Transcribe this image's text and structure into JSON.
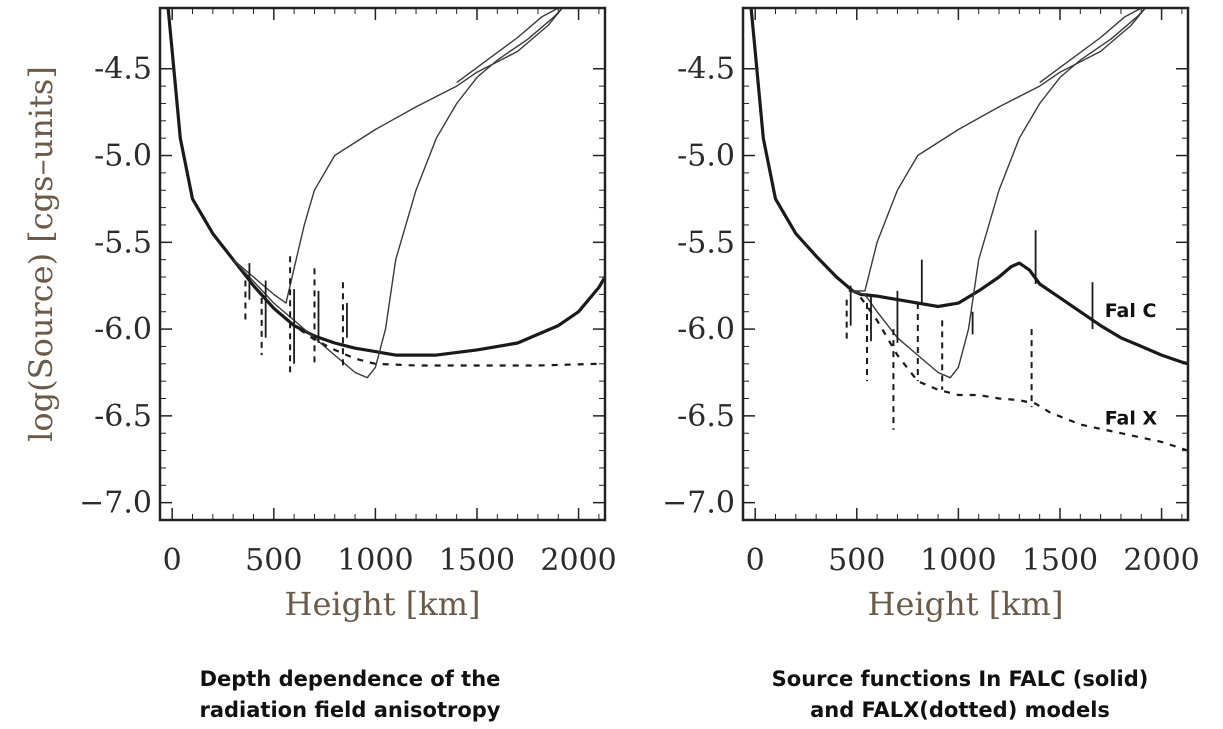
{
  "captions": {
    "left": [
      "Depth dependence of the",
      "radiation field anisotropy"
    ],
    "right": [
      "Source functions In FALC (solid)",
      "and FALX(dotted)  models"
    ]
  },
  "chart_data": [
    {
      "type": "line",
      "xlabel": "Height [km]",
      "ylabel": "log(Source) [cgs–units]",
      "xlim": [
        -60,
        2130
      ],
      "ylim": [
        -7.1,
        -4.15
      ],
      "xticks": [
        0,
        500,
        1000,
        1500,
        2000
      ],
      "yticks": [
        -4.5,
        -5.0,
        -5.5,
        -6.0,
        -6.5,
        -7.0
      ],
      "ytick_labels": [
        "-4.5",
        "-5.0",
        "-5.5",
        "-6.0",
        "-6.5",
        "−7.0"
      ],
      "series": [
        {
          "style": "solid-thick",
          "x": [
            -20,
            0,
            40,
            100,
            200,
            300,
            400,
            500,
            600,
            700,
            800,
            900,
            1000,
            1100,
            1300,
            1500,
            1700,
            1900,
            2000,
            2100,
            2130
          ],
          "y": [
            -4.15,
            -4.4,
            -4.9,
            -5.25,
            -5.45,
            -5.6,
            -5.75,
            -5.88,
            -5.98,
            -6.04,
            -6.08,
            -6.11,
            -6.13,
            -6.15,
            -6.15,
            -6.12,
            -6.08,
            -5.98,
            -5.9,
            -5.76,
            -5.7
          ]
        },
        {
          "style": "dashed",
          "x": [
            200,
            300,
            400,
            500,
            600,
            700,
            800,
            900,
            1000,
            1200,
            1500,
            1800,
            2100
          ],
          "y": [
            -5.45,
            -5.6,
            -5.75,
            -5.88,
            -5.98,
            -6.06,
            -6.12,
            -6.17,
            -6.2,
            -6.21,
            -6.21,
            -6.21,
            -6.2
          ]
        },
        {
          "style": "thin",
          "x": [
            300,
            400,
            500,
            560,
            600,
            650,
            700,
            800,
            1000,
            1200,
            1400,
            1500,
            1700,
            1850,
            1920
          ],
          "y": [
            -5.6,
            -5.7,
            -5.8,
            -5.85,
            -5.65,
            -5.4,
            -5.2,
            -5.0,
            -4.85,
            -4.72,
            -4.6,
            -4.52,
            -4.4,
            -4.25,
            -4.15
          ]
        },
        {
          "style": "thin",
          "x": [
            300,
            500,
            600,
            700,
            800,
            900,
            960,
            1000,
            1050,
            1100,
            1200,
            1300,
            1400,
            1500,
            1600,
            1750,
            1880,
            1920
          ],
          "y": [
            -5.6,
            -5.85,
            -5.95,
            -6.05,
            -6.15,
            -6.25,
            -6.28,
            -6.22,
            -6.0,
            -5.6,
            -5.2,
            -4.9,
            -4.7,
            -4.55,
            -4.45,
            -4.33,
            -4.2,
            -4.15
          ]
        },
        {
          "style": "thin",
          "x": [
            1400,
            1550,
            1700,
            1820,
            1900
          ],
          "y": [
            -4.58,
            -4.45,
            -4.32,
            -4.2,
            -4.15
          ]
        }
      ],
      "error_bars": {
        "solid": [
          [
            380,
            -5.62,
            -5.83
          ],
          [
            460,
            -5.72,
            -6.05
          ],
          [
            600,
            -5.77,
            -6.2
          ],
          [
            720,
            -5.78,
            -6.08
          ],
          [
            860,
            -5.85,
            -6.05
          ]
        ],
        "dashed": [
          [
            380,
            -5.72,
            -5.95
          ],
          [
            460,
            -5.82,
            -6.15
          ],
          [
            600,
            -5.58,
            -6.25
          ],
          [
            720,
            -5.65,
            -6.2
          ],
          [
            860,
            -5.73,
            -6.22
          ]
        ]
      }
    },
    {
      "type": "line",
      "xlabel": "Height [km]",
      "ylabel": "",
      "xlim": [
        -60,
        2130
      ],
      "ylim": [
        -7.1,
        -4.15
      ],
      "xticks": [
        0,
        500,
        1000,
        1500,
        2000
      ],
      "yticks": [
        -4.5,
        -5.0,
        -5.5,
        -6.0,
        -6.5,
        -7.0
      ],
      "ytick_labels": [
        "-4.5",
        "-5.0",
        "-5.5",
        "-6.0",
        "-6.5",
        "−7.0"
      ],
      "annotations": [
        {
          "text": "Fal C",
          "x": 1720,
          "y": -5.93
        },
        {
          "text": "Fal X",
          "x": 1720,
          "y": -6.55
        }
      ],
      "series": [
        {
          "style": "solid-thick",
          "name": "Fal C",
          "x": [
            -20,
            0,
            40,
            100,
            200,
            300,
            400,
            480,
            520,
            600,
            700,
            800,
            900,
            1000,
            1100,
            1200,
            1260,
            1300,
            1350,
            1400,
            1500,
            1600,
            1700,
            1800,
            1900,
            2000,
            2100,
            2130
          ],
          "y": [
            -4.15,
            -4.4,
            -4.9,
            -5.25,
            -5.45,
            -5.58,
            -5.7,
            -5.78,
            -5.8,
            -5.81,
            -5.83,
            -5.85,
            -5.87,
            -5.85,
            -5.78,
            -5.7,
            -5.64,
            -5.62,
            -5.66,
            -5.74,
            -5.82,
            -5.9,
            -5.98,
            -6.05,
            -6.1,
            -6.15,
            -6.19,
            -6.2
          ]
        },
        {
          "style": "dashed",
          "name": "Fal X",
          "x": [
            200,
            300,
            400,
            480,
            520,
            600,
            700,
            800,
            900,
            1000,
            1100,
            1200,
            1300,
            1380,
            1450,
            1600,
            1800,
            2000,
            2130
          ],
          "y": [
            -5.45,
            -5.58,
            -5.7,
            -5.78,
            -5.82,
            -5.95,
            -6.15,
            -6.3,
            -6.35,
            -6.38,
            -6.38,
            -6.4,
            -6.41,
            -6.43,
            -6.48,
            -6.55,
            -6.6,
            -6.65,
            -6.7
          ]
        },
        {
          "style": "thin",
          "x": [
            460,
            540,
            600,
            700,
            800,
            1000,
            1200,
            1400,
            1500,
            1700,
            1850,
            1920
          ],
          "y": [
            -5.78,
            -5.78,
            -5.5,
            -5.2,
            -5.0,
            -4.85,
            -4.72,
            -4.6,
            -4.52,
            -4.4,
            -4.25,
            -4.15
          ]
        },
        {
          "style": "thin",
          "x": [
            460,
            540,
            600,
            700,
            800,
            900,
            960,
            1000,
            1050,
            1100,
            1200,
            1300,
            1400,
            1500,
            1600,
            1750,
            1880,
            1920
          ],
          "y": [
            -5.78,
            -5.8,
            -5.9,
            -6.05,
            -6.15,
            -6.25,
            -6.28,
            -6.22,
            -6.0,
            -5.6,
            -5.2,
            -4.9,
            -4.7,
            -4.55,
            -4.45,
            -4.33,
            -4.2,
            -4.15
          ]
        },
        {
          "style": "thin",
          "x": [
            1400,
            1550,
            1700,
            1820,
            1900
          ],
          "y": [
            -4.58,
            -4.45,
            -4.32,
            -4.2,
            -4.15
          ]
        }
      ],
      "error_bars": {
        "solid": [
          [
            470,
            -5.75,
            -5.98
          ],
          [
            570,
            -5.8,
            -6.07
          ],
          [
            700,
            -5.78,
            -6.08
          ],
          [
            820,
            -5.6,
            -5.86
          ],
          [
            1070,
            -5.9,
            -6.03
          ],
          [
            1380,
            -5.43,
            -5.74
          ],
          [
            1660,
            -5.73,
            -6.0
          ]
        ],
        "dashed": [
          [
            470,
            -5.83,
            -6.08
          ],
          [
            570,
            -5.85,
            -6.3
          ],
          [
            700,
            -6.0,
            -6.58
          ],
          [
            820,
            -5.85,
            -6.3
          ],
          [
            940,
            -5.95,
            -6.35
          ],
          [
            1380,
            -6.0,
            -6.45
          ]
        ]
      }
    }
  ]
}
